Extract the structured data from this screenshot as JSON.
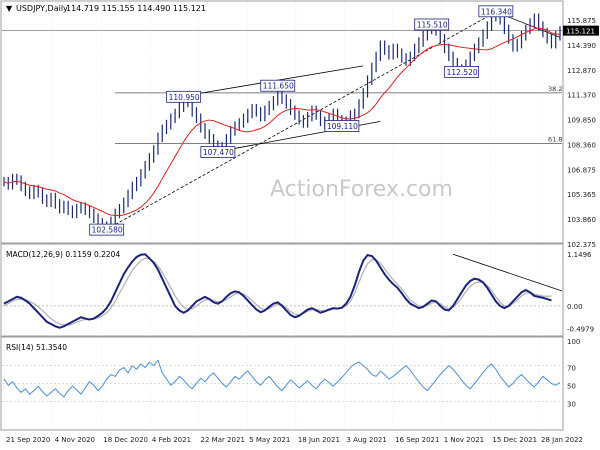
{
  "header": {
    "symbol": "USDJPY,Daily",
    "ohlc": "114.719 115.155 114.490 115.121"
  },
  "watermark": "ActionForex.com",
  "colors": {
    "price": "#1a2a6c",
    "ma": "#e02020",
    "trend": "#000000",
    "macd": "#1a237e",
    "signal": "#b0b0b0",
    "rsi": "#4a90d9",
    "grid": "#d8d8d8",
    "level_line": "#555555",
    "label_border": "#1a237e",
    "current_price_bg": "#000000"
  },
  "chart_data": [
    {
      "type": "line",
      "title": "USDJPY,Daily",
      "xlabel": "",
      "ylabel": "",
      "ylim": [
        101.8,
        116.8
      ],
      "x_tick_labels": [
        "21 Sep 2020",
        "4 Nov 2020",
        "18 Dec 2020",
        "4 Feb 2021",
        "22 Mar 2021",
        "5 May 2021",
        "18 Jun 2021",
        "3 Aug 2021",
        "16 Sep 2021",
        "1 Nov 2021",
        "15 Dec 2021",
        "28 Jan 2022"
      ],
      "y_tick_labels": [
        "115.875",
        "114.390",
        "112.870",
        "111.370",
        "109.850",
        "108.360",
        "106.875",
        "105.365",
        "103.860",
        "102.375"
      ],
      "current_price": "115.121",
      "series": [
        {
          "values": [
            105.6,
            105.4,
            105.8,
            105.7,
            105.3,
            105.0,
            104.8,
            105.1,
            104.9,
            104.5,
            104.3,
            104.6,
            104.2,
            103.9,
            104.1,
            103.8,
            103.6,
            103.9,
            104.0,
            103.8,
            103.6,
            103.3,
            103.0,
            102.8,
            102.6,
            103.1,
            103.6,
            103.9,
            104.3,
            104.8,
            105.3,
            105.6,
            106.1,
            106.6,
            107.1,
            107.6,
            108.4,
            108.9,
            109.2,
            109.6,
            109.9,
            110.3,
            110.9,
            110.6,
            110.0,
            109.6,
            109.0,
            108.6,
            108.3,
            107.9,
            107.5,
            107.8,
            108.3,
            108.8,
            109.1,
            109.3,
            109.6,
            109.9,
            110.2,
            110.0,
            109.7,
            110.1,
            110.4,
            110.7,
            111.0,
            110.8,
            110.5,
            110.1,
            109.8,
            109.5,
            109.3,
            109.7,
            110.1,
            109.8,
            109.4,
            109.2,
            109.6,
            109.9,
            109.5,
            109.1,
            109.4,
            109.8,
            109.9,
            110.5,
            111.2,
            112.0,
            112.8,
            113.5,
            114.2,
            113.9,
            113.6,
            114.0,
            113.7,
            113.4,
            113.2,
            113.5,
            114.0,
            114.4,
            114.8,
            115.2,
            115.5,
            115.1,
            114.6,
            114.0,
            113.5,
            113.1,
            112.7,
            112.6,
            113.0,
            113.5,
            114.0,
            114.4,
            114.9,
            115.4,
            116.0,
            116.3,
            115.8,
            115.2,
            114.6,
            114.1,
            114.3,
            114.8,
            115.2,
            115.6,
            115.9,
            115.4,
            115.0,
            114.6,
            114.3,
            114.8,
            115.1
          ],
          "labels": [
            {
              "text": "102.580",
              "i": 24
            },
            {
              "text": "107.470",
              "i": 50
            },
            {
              "text": "110.950",
              "i": 42
            },
            {
              "text": "111.650",
              "i": 64
            },
            {
              "text": "109.110",
              "i": 79
            },
            {
              "text": "115.510",
              "i": 100
            },
            {
              "text": "112.520",
              "i": 107
            },
            {
              "text": "116.340",
              "i": 115
            }
          ],
          "levels": [
            {
              "label": "38.2",
              "value": 111.2
            },
            {
              "label": "61.8",
              "value": 108.0
            }
          ]
        }
      ]
    },
    {
      "type": "line",
      "title": "MACD(12,26,9) 0.1159 0.2204",
      "ylim": [
        -0.62,
        1.3
      ],
      "y_tick_labels": [
        "1.1496",
        "0.00",
        "-0.4979"
      ],
      "series": [
        {
          "name": "MACD",
          "values": [
            0.05,
            0.1,
            0.15,
            0.2,
            0.18,
            0.12,
            0.05,
            -0.05,
            -0.15,
            -0.25,
            -0.35,
            -0.4,
            -0.45,
            -0.48,
            -0.45,
            -0.4,
            -0.35,
            -0.3,
            -0.25,
            -0.28,
            -0.3,
            -0.28,
            -0.22,
            -0.15,
            -0.05,
            0.1,
            0.3,
            0.5,
            0.7,
            0.85,
            0.98,
            1.08,
            1.13,
            1.14,
            1.05,
            0.95,
            0.8,
            0.6,
            0.4,
            0.2,
            0.0,
            -0.1,
            -0.15,
            -0.1,
            0.0,
            0.1,
            0.15,
            0.2,
            0.15,
            0.08,
            0.05,
            0.1,
            0.2,
            0.28,
            0.32,
            0.3,
            0.22,
            0.12,
            0.02,
            -0.08,
            -0.14,
            -0.1,
            -0.02,
            0.05,
            0.08,
            0.0,
            -0.1,
            -0.2,
            -0.25,
            -0.22,
            -0.15,
            -0.08,
            -0.05,
            -0.1,
            -0.15,
            -0.12,
            -0.08,
            -0.05,
            -0.06,
            -0.04,
            0.05,
            0.2,
            0.45,
            0.75,
            1.0,
            1.12,
            1.1,
            1.0,
            0.85,
            0.7,
            0.58,
            0.48,
            0.4,
            0.28,
            0.15,
            0.05,
            0.0,
            -0.05,
            -0.02,
            0.05,
            0.12,
            0.1,
            0.0,
            -0.08,
            -0.1,
            0.0,
            0.15,
            0.3,
            0.45,
            0.55,
            0.6,
            0.58,
            0.52,
            0.4,
            0.25,
            0.1,
            0.0,
            -0.05,
            0.0,
            0.1,
            0.2,
            0.3,
            0.35,
            0.3,
            0.22,
            0.2,
            0.18,
            0.15,
            0.12
          ],
          "labels": []
        },
        {
          "name": "Signal",
          "values": [
            0.0,
            0.05,
            0.1,
            0.14,
            0.15,
            0.14,
            0.1,
            0.05,
            -0.02,
            -0.1,
            -0.2,
            -0.28,
            -0.35,
            -0.4,
            -0.42,
            -0.42,
            -0.4,
            -0.36,
            -0.32,
            -0.3,
            -0.3,
            -0.29,
            -0.26,
            -0.22,
            -0.15,
            -0.05,
            0.1,
            0.28,
            0.45,
            0.62,
            0.78,
            0.9,
            1.0,
            1.05,
            1.04,
            0.98,
            0.88,
            0.74,
            0.57,
            0.4,
            0.22,
            0.08,
            -0.03,
            -0.08,
            -0.06,
            0.0,
            0.07,
            0.13,
            0.15,
            0.12,
            0.09,
            0.1,
            0.14,
            0.2,
            0.26,
            0.28,
            0.26,
            0.2,
            0.12,
            0.03,
            -0.05,
            -0.08,
            -0.06,
            -0.01,
            0.04,
            0.03,
            -0.04,
            -0.12,
            -0.18,
            -0.2,
            -0.17,
            -0.12,
            -0.08,
            -0.08,
            -0.1,
            -0.11,
            -0.1,
            -0.07,
            -0.06,
            -0.05,
            0.0,
            0.1,
            0.28,
            0.52,
            0.75,
            0.93,
            1.02,
            1.02,
            0.94,
            0.82,
            0.7,
            0.58,
            0.48,
            0.37,
            0.25,
            0.13,
            0.06,
            0.0,
            -0.01,
            0.01,
            0.06,
            0.08,
            0.05,
            -0.02,
            -0.06,
            -0.03,
            0.06,
            0.18,
            0.32,
            0.43,
            0.5,
            0.53,
            0.52,
            0.45,
            0.34,
            0.2,
            0.08,
            0.0,
            -0.01,
            0.05,
            0.13,
            0.22,
            0.28,
            0.29,
            0.26,
            0.24,
            0.22,
            0.21,
            0.22
          ]
        }
      ]
    },
    {
      "type": "line",
      "title": "RSI(14) 51.3540",
      "ylim": [
        0,
        100
      ],
      "y_tick_labels": [
        "100",
        "70",
        "50",
        "30",
        "0"
      ],
      "series": [
        {
          "name": "RSI",
          "values": [
            55,
            48,
            52,
            45,
            40,
            44,
            38,
            42,
            47,
            41,
            36,
            40,
            44,
            39,
            35,
            42,
            47,
            43,
            38,
            45,
            52,
            48,
            42,
            47,
            55,
            60,
            58,
            65,
            68,
            62,
            70,
            66,
            72,
            68,
            74,
            70,
            76,
            62,
            55,
            48,
            52,
            58,
            54,
            48,
            44,
            50,
            56,
            52,
            58,
            62,
            56,
            50,
            46,
            52,
            58,
            55,
            60,
            64,
            58,
            52,
            48,
            54,
            58,
            52,
            46,
            42,
            48,
            54,
            50,
            45,
            49,
            53,
            48,
            44,
            50,
            55,
            51,
            47,
            52,
            57,
            62,
            68,
            72,
            74,
            70,
            66,
            60,
            58,
            64,
            60,
            55,
            58,
            62,
            66,
            70,
            65,
            58,
            52,
            46,
            42,
            48,
            54,
            60,
            65,
            70,
            66,
            60,
            54,
            48,
            44,
            50,
            56,
            62,
            68,
            72,
            66,
            58,
            52,
            46,
            50,
            56,
            60,
            55,
            50,
            46,
            52,
            58,
            54,
            50,
            48,
            51
          ]
        }
      ]
    }
  ]
}
